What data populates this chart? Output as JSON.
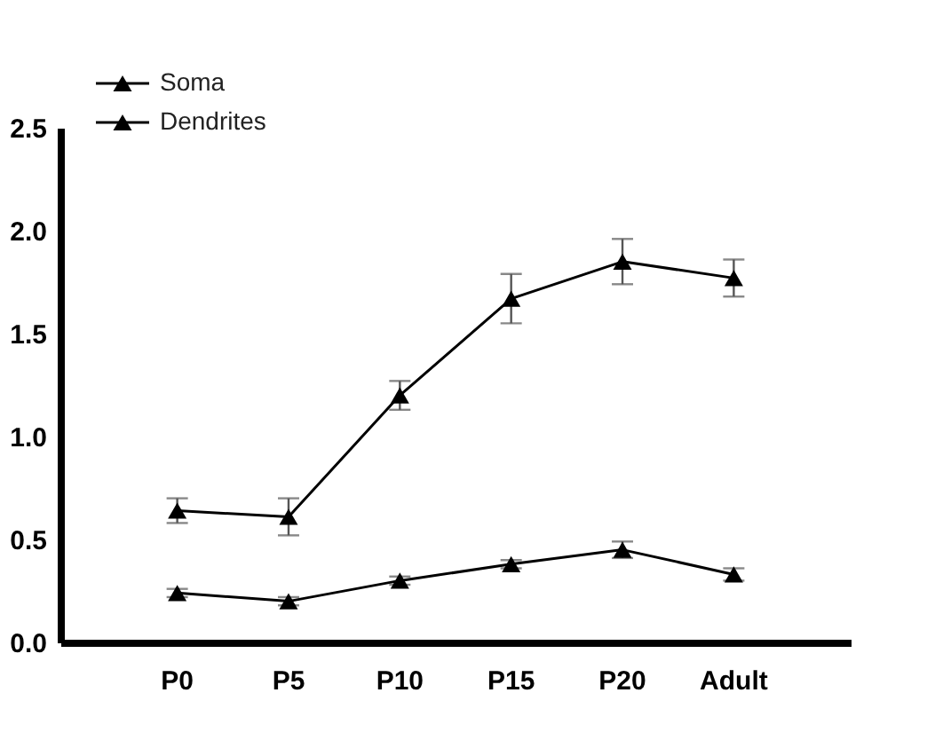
{
  "chart_data": {
    "type": "line",
    "categories": [
      "P0",
      "P5",
      "P10",
      "P15",
      "P20",
      "Adult"
    ],
    "series": [
      {
        "name": "Soma",
        "color": "#000000",
        "values": [
          0.24,
          0.2,
          0.3,
          0.38,
          0.45,
          0.33
        ],
        "errors": [
          0.02,
          0.02,
          0.02,
          0.02,
          0.04,
          0.03
        ]
      },
      {
        "name": "Dendrites",
        "color": "#000000",
        "values": [
          0.64,
          0.61,
          1.2,
          1.67,
          1.85,
          1.77
        ],
        "errors": [
          0.06,
          0.09,
          0.07,
          0.12,
          0.11,
          0.09
        ]
      }
    ],
    "ylim": [
      0,
      2.5
    ],
    "yticks": [
      {
        "value": 0,
        "label": "0.0"
      },
      0.5,
      {
        "value": 1,
        "label": "1.0"
      },
      1.5,
      {
        "value": 2,
        "label": "2.0"
      },
      2.5
    ],
    "grid": false,
    "legend": "top left",
    "marker": "triangle",
    "line_style": "solid"
  }
}
